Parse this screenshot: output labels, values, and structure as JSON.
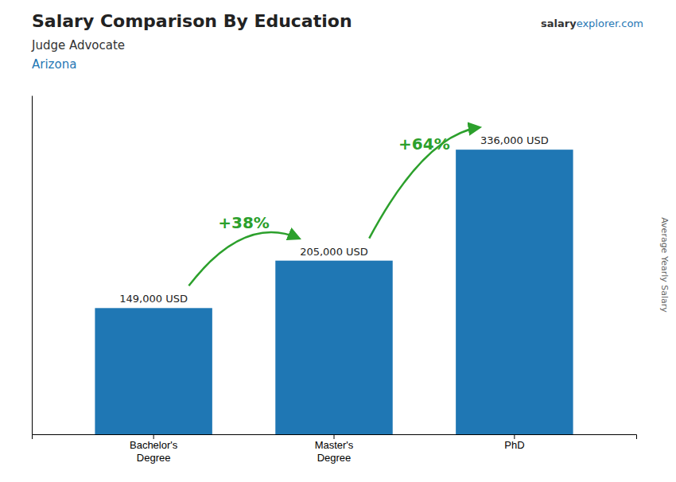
{
  "chart_data": {
    "type": "bar",
    "title": "Salary Comparison By Education",
    "subtitle": [
      "Judge Advocate",
      "Arizona"
    ],
    "brand": [
      "salary",
      "explorer.com"
    ],
    "ylabel": "Average Yearly Salary",
    "categories": [
      "Bachelor's\nDegree",
      "Master's\nDegree",
      "PhD"
    ],
    "values": [
      149000,
      205000,
      336000
    ],
    "value_labels": [
      "149,000 USD",
      "205,000 USD",
      "336,000 USD"
    ],
    "data_labels": true,
    "annotations": [
      "+38%",
      "+64%"
    ],
    "ylim": [
      0,
      400000
    ],
    "tick_labels": "x",
    "grid": false
  }
}
